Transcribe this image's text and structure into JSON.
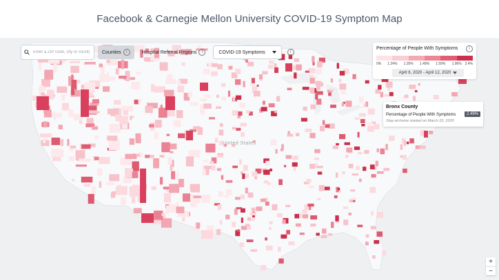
{
  "header": {
    "title": "Facebook & Carnegie Mellon University COVID-19 Symptom Map"
  },
  "toolbar": {
    "search_placeholder": "Enter a ZIP code, city or county",
    "counties_label": "Counties",
    "hrr_label": "Hospital Referral Regions",
    "symptom_select_label": "COVID-19 Symptoms",
    "info_glyph": "i"
  },
  "legend": {
    "title": "Percentage of People With Symptoms",
    "ticks": [
      "0%",
      "1.24%",
      "1.35%",
      "1.49%",
      "1.59%",
      "1.96%",
      "2.4%"
    ],
    "colors": [
      "#fbe3e6",
      "#f8cdd3",
      "#f3aab4",
      "#ec8594",
      "#e15d72",
      "#cc2f4d"
    ],
    "date_range": "April 6, 2020 - April 12, 2020"
  },
  "tooltip": {
    "county": "Bronx County",
    "label": "Percentage of People With Symptoms",
    "value": "2.49%",
    "note": "Stay-at-home started on March 22, 2020"
  },
  "map": {
    "country_label": "United States"
  },
  "zoom": {
    "in": "+",
    "out": "−"
  }
}
